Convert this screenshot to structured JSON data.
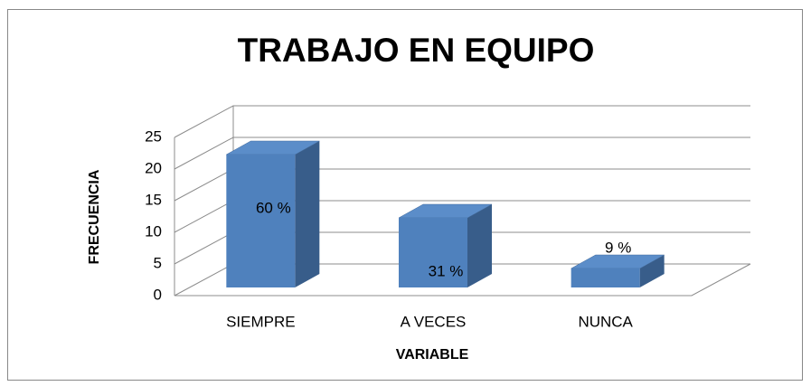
{
  "chart_data": {
    "type": "bar3d",
    "title": "TRABAJO EN EQUIPO",
    "x_label": "VARIABLE",
    "y_label": "FRECUENCIA",
    "categories": [
      "SIEMPRE",
      "A VECES",
      "NUNCA"
    ],
    "values": [
      21,
      11,
      3
    ],
    "data_labels": [
      "60 %",
      "31 %",
      "9 %"
    ],
    "color": "#4f81bd",
    "ylim": [
      0,
      25
    ],
    "yticks": [
      0,
      5,
      10,
      15,
      20,
      25
    ],
    "grid": true
  }
}
